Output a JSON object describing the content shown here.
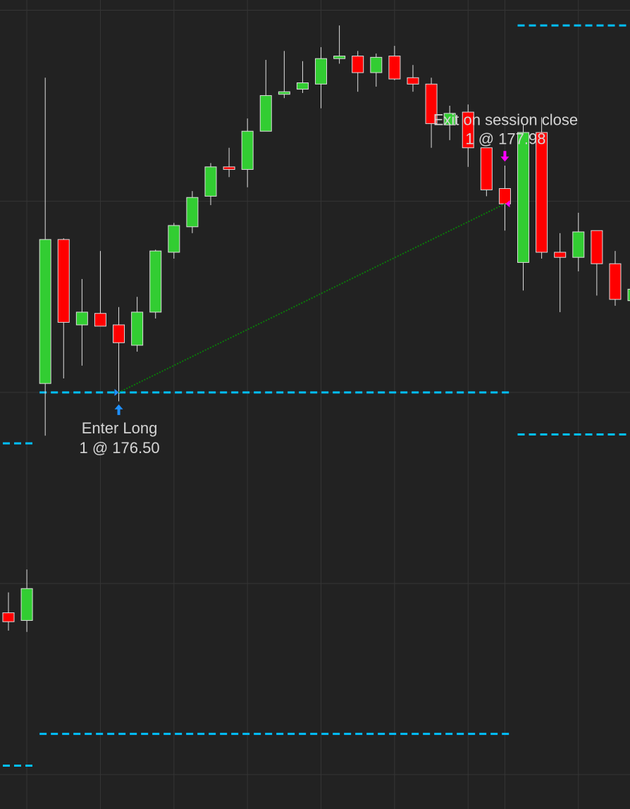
{
  "chart_data": {
    "type": "candlestick",
    "title": "",
    "xlabel": "",
    "ylabel": "",
    "ylim": [
      173.23,
      179.58
    ],
    "grid": true,
    "y_gridlines": [
      179.5,
      178.0,
      176.5,
      175.0,
      173.5
    ],
    "colors": {
      "background": "#222222",
      "up": "#32cd32",
      "down": "#ff0000",
      "wick": "#e0e0e0",
      "level": "#00bfff",
      "grid": "#353535",
      "entry": "#1e90ff",
      "exit": "#ff00ff",
      "trade_line": "#0a7a0a"
    },
    "candles": [
      {
        "o": 174.77,
        "h": 174.93,
        "l": 174.63,
        "c": 174.7
      },
      {
        "o": 174.71,
        "h": 175.11,
        "l": 174.62,
        "c": 174.96
      },
      {
        "o": 176.57,
        "h": 178.97,
        "l": 176.16,
        "c": 177.7
      },
      {
        "o": 177.7,
        "h": 177.71,
        "l": 176.61,
        "c": 177.05
      },
      {
        "o": 177.03,
        "h": 177.39,
        "l": 176.71,
        "c": 177.13
      },
      {
        "o": 177.12,
        "h": 177.61,
        "l": 177.02,
        "c": 177.02
      },
      {
        "o": 177.03,
        "h": 177.17,
        "l": 176.43,
        "c": 176.89
      },
      {
        "o": 176.87,
        "h": 177.25,
        "l": 176.82,
        "c": 177.13
      },
      {
        "o": 177.13,
        "h": 177.62,
        "l": 177.08,
        "c": 177.61
      },
      {
        "o": 177.6,
        "h": 177.83,
        "l": 177.55,
        "c": 177.81
      },
      {
        "o": 177.8,
        "h": 178.08,
        "l": 177.75,
        "c": 178.03
      },
      {
        "o": 178.04,
        "h": 178.3,
        "l": 177.97,
        "c": 178.27
      },
      {
        "o": 178.27,
        "h": 178.42,
        "l": 178.19,
        "c": 178.25
      },
      {
        "o": 178.25,
        "h": 178.65,
        "l": 178.11,
        "c": 178.55
      },
      {
        "o": 178.55,
        "h": 179.11,
        "l": 178.55,
        "c": 178.83
      },
      {
        "o": 178.84,
        "h": 179.18,
        "l": 178.81,
        "c": 178.86
      },
      {
        "o": 178.88,
        "h": 179.1,
        "l": 178.85,
        "c": 178.93
      },
      {
        "o": 178.92,
        "h": 179.21,
        "l": 178.73,
        "c": 179.12
      },
      {
        "o": 179.12,
        "h": 179.38,
        "l": 179.08,
        "c": 179.14
      },
      {
        "o": 179.14,
        "h": 179.18,
        "l": 178.86,
        "c": 179.01
      },
      {
        "o": 179.01,
        "h": 179.16,
        "l": 178.9,
        "c": 179.13
      },
      {
        "o": 179.14,
        "h": 179.22,
        "l": 178.95,
        "c": 178.96
      },
      {
        "o": 178.97,
        "h": 179.07,
        "l": 178.86,
        "c": 178.92
      },
      {
        "o": 178.92,
        "h": 178.97,
        "l": 178.42,
        "c": 178.61
      },
      {
        "o": 178.6,
        "h": 178.75,
        "l": 178.48,
        "c": 178.69
      },
      {
        "o": 178.7,
        "h": 178.76,
        "l": 178.27,
        "c": 178.42
      },
      {
        "o": 178.42,
        "h": 178.42,
        "l": 178.04,
        "c": 178.09
      },
      {
        "o": 178.1,
        "h": 178.28,
        "l": 177.77,
        "c": 177.98
      },
      {
        "o": 177.52,
        "h": 178.6,
        "l": 177.3,
        "c": 178.54
      },
      {
        "o": 178.54,
        "h": 178.66,
        "l": 177.55,
        "c": 177.6
      },
      {
        "o": 177.6,
        "h": 177.75,
        "l": 177.13,
        "c": 177.56
      },
      {
        "o": 177.56,
        "h": 177.91,
        "l": 177.45,
        "c": 177.76
      },
      {
        "o": 177.77,
        "h": 177.77,
        "l": 177.26,
        "c": 177.51
      },
      {
        "o": 177.51,
        "h": 177.61,
        "l": 177.18,
        "c": 177.23
      },
      {
        "o": 177.22,
        "h": 177.31,
        "l": 177.22,
        "c": 177.31
      }
    ],
    "levels": [
      {
        "price": 176.1,
        "from": 0,
        "to": 1
      },
      {
        "price": 173.57,
        "from": 0,
        "to": 1
      },
      {
        "price": 176.5,
        "from": 2,
        "to": 27
      },
      {
        "price": 173.82,
        "from": 2,
        "to": 27
      },
      {
        "price": 179.38,
        "from": 28,
        "to": 34
      },
      {
        "price": 176.17,
        "from": 28,
        "to": 34
      }
    ],
    "trades": {
      "entry": {
        "bar": 6,
        "price": 176.5,
        "label": "Enter Long",
        "detail": "1 @ 176.50"
      },
      "exit": {
        "bar": 27,
        "price": 177.98,
        "label": "Exit on session close",
        "detail": "1 @ 177.98"
      }
    }
  }
}
